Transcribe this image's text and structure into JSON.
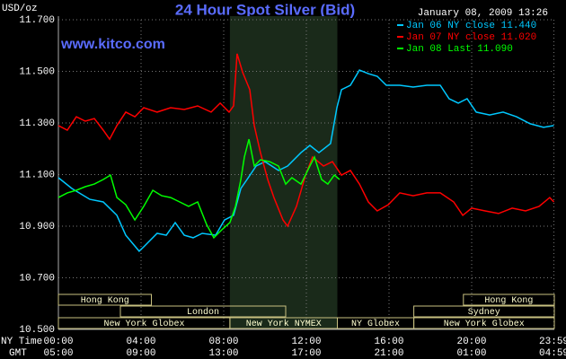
{
  "chart_data": {
    "type": "line",
    "title": "24 Hour Spot Silver (Bid)",
    "timestamp": "January 08, 2009 13:26",
    "watermark": "www.kitco.com",
    "y_label": "USD/oz",
    "x_label": "NY Time",
    "x2_label": "GMT",
    "xlim": [
      0,
      24
    ],
    "ylim": [
      10.5,
      11.7
    ],
    "grid": true,
    "yticks": [
      {
        "value": 10.5,
        "label": "10.500"
      },
      {
        "value": 10.7,
        "label": "10.700"
      },
      {
        "value": 10.9,
        "label": "10.900"
      },
      {
        "value": 11.1,
        "label": "11.100"
      },
      {
        "value": 11.3,
        "label": "11.300"
      },
      {
        "value": 11.5,
        "label": "11.500"
      },
      {
        "value": 11.7,
        "label": "11.700"
      }
    ],
    "xticks": [
      {
        "value": 0,
        "label": "00:00"
      },
      {
        "value": 4,
        "label": "04:00"
      },
      {
        "value": 8,
        "label": "08:00"
      },
      {
        "value": 12,
        "label": "12:00"
      },
      {
        "value": 16,
        "label": "16:00"
      },
      {
        "value": 20,
        "label": "20:00"
      },
      {
        "value": 23.98,
        "label": "23:59"
      }
    ],
    "xticks_gmt": [
      {
        "value": 0,
        "label": "05:00"
      },
      {
        "value": 4,
        "label": "09:00"
      },
      {
        "value": 8,
        "label": "13:00"
      },
      {
        "value": 12,
        "label": "17:00"
      },
      {
        "value": 16,
        "label": "21:00"
      },
      {
        "value": 20,
        "label": "01:00"
      },
      {
        "value": 23.98,
        "label": "04:59"
      }
    ],
    "highlight": [
      8.3,
      13.5
    ],
    "session_rows": [
      [
        {
          "label": "New York Globex",
          "start": 0,
          "end": 8.3
        },
        {
          "label": "New York NYMEX",
          "start": 8.3,
          "end": 13.5
        },
        {
          "label": "NY Globex",
          "start": 13.5,
          "end": 17.2
        },
        {
          "label": "New York Globex",
          "start": 17.2,
          "end": 24
        }
      ],
      [
        {
          "label": "London",
          "start": 3,
          "end": 11
        },
        {
          "label": "Sydney",
          "start": 17.2,
          "end": 24
        }
      ],
      [
        {
          "label": "Hong Kong",
          "start": 0,
          "end": 4.5
        },
        {
          "label": "Hong Kong",
          "start": 19.6,
          "end": 24
        }
      ]
    ],
    "series": [
      {
        "name": "Jan 06 NY close 11.440",
        "color": "#00c8ff",
        "x": [
          0,
          0.65,
          1.52,
          2.17,
          2.83,
          3.26,
          3.91,
          4.13,
          4.78,
          5.22,
          5.65,
          6.09,
          6.52,
          6.96,
          7.61,
          8.04,
          8.48,
          8.83,
          9.13,
          9.57,
          10,
          10.65,
          11.09,
          11.74,
          12.17,
          12.61,
          13.17,
          13.48,
          13.7,
          14.13,
          14.57,
          15,
          15.43,
          15.87,
          16.52,
          17.17,
          17.83,
          18.48,
          18.91,
          19.35,
          19.78,
          20.22,
          20.87,
          21.52,
          22.17,
          22.83,
          23.48,
          23.98
        ],
        "values": [
          11.088,
          11.046,
          11.004,
          10.994,
          10.942,
          10.865,
          10.803,
          10.82,
          10.872,
          10.865,
          10.914,
          10.865,
          10.855,
          10.872,
          10.865,
          10.924,
          10.942,
          11.046,
          11.081,
          11.133,
          11.15,
          11.116,
          11.133,
          11.185,
          11.213,
          11.185,
          11.22,
          11.359,
          11.429,
          11.446,
          11.505,
          11.491,
          11.481,
          11.446,
          11.446,
          11.439,
          11.446,
          11.446,
          11.394,
          11.377,
          11.394,
          11.342,
          11.331,
          11.342,
          11.324,
          11.297,
          11.283,
          11.29
        ]
      },
      {
        "name": "Jan 07 NY close 11.020",
        "color": "#ff0000",
        "x": [
          0,
          0.43,
          0.87,
          1.3,
          1.74,
          2.17,
          2.48,
          2.83,
          3.26,
          3.7,
          4.13,
          4.78,
          5.43,
          6.09,
          6.74,
          7.39,
          7.83,
          8.26,
          8.48,
          8.65,
          8.91,
          9.26,
          9.48,
          9.78,
          10.13,
          10.43,
          10.87,
          11.09,
          11.52,
          11.96,
          12.3,
          12.83,
          13.26,
          13.7,
          14.13,
          14.57,
          15,
          15.43,
          15.96,
          16.52,
          17.17,
          17.83,
          18.48,
          19.13,
          19.57,
          20,
          20.65,
          21.3,
          21.96,
          22.61,
          23.26,
          23.78,
          23.98
        ],
        "values": [
          11.29,
          11.272,
          11.324,
          11.307,
          11.317,
          11.272,
          11.237,
          11.29,
          11.342,
          11.324,
          11.359,
          11.342,
          11.359,
          11.352,
          11.366,
          11.342,
          11.377,
          11.342,
          11.366,
          11.568,
          11.498,
          11.429,
          11.29,
          11.185,
          11.081,
          11.011,
          10.924,
          10.9,
          10.977,
          11.098,
          11.168,
          11.133,
          11.15,
          11.098,
          11.116,
          11.063,
          10.994,
          10.959,
          10.983,
          11.029,
          11.018,
          11.029,
          11.029,
          10.994,
          10.942,
          10.97,
          10.959,
          10.949,
          10.97,
          10.959,
          10.977,
          11.011,
          10.994
        ]
      },
      {
        "name": "Jan 08 Last 11.090",
        "color": "#00ff00",
        "x": [
          0,
          0.43,
          0.87,
          1.3,
          1.74,
          2.17,
          2.52,
          2.83,
          3.26,
          3.7,
          4.13,
          4.57,
          5,
          5.43,
          5.87,
          6.3,
          6.74,
          7.17,
          7.52,
          7.96,
          8.3,
          8.57,
          8.83,
          9,
          9.22,
          9.48,
          9.78,
          10.22,
          10.65,
          11,
          11.3,
          11.74,
          12.17,
          12.39,
          12.74,
          13.04,
          13.35,
          13.61
        ],
        "values": [
          11.011,
          11.029,
          11.039,
          11.053,
          11.063,
          11.081,
          11.098,
          11.011,
          10.983,
          10.924,
          10.977,
          11.039,
          11.018,
          11.011,
          10.994,
          10.977,
          10.994,
          10.907,
          10.855,
          10.89,
          10.914,
          10.977,
          11.081,
          11.168,
          11.237,
          11.133,
          11.157,
          11.15,
          11.133,
          11.063,
          11.088,
          11.063,
          11.133,
          11.168,
          11.081,
          11.063,
          11.098,
          11.081
        ]
      }
    ]
  }
}
